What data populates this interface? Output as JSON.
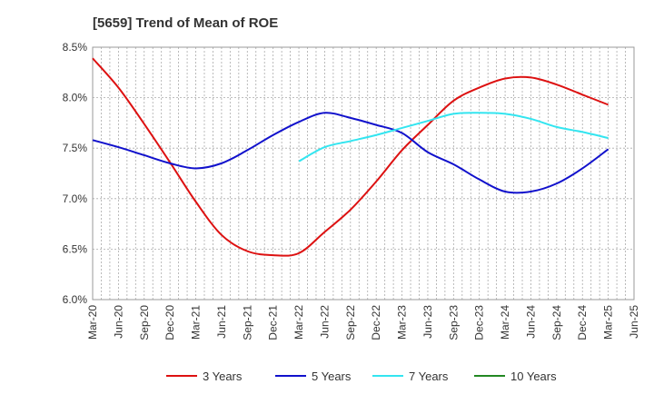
{
  "chart_data": {
    "type": "line",
    "title": "[5659]  Trend of Mean of ROE",
    "xlabel": "",
    "ylabel": "",
    "x": [
      "Mar-20",
      "Jun-20",
      "Sep-20",
      "Dec-20",
      "Mar-21",
      "Jun-21",
      "Sep-21",
      "Dec-21",
      "Mar-22",
      "Jun-22",
      "Sep-22",
      "Dec-22",
      "Mar-23",
      "Jun-23",
      "Sep-23",
      "Dec-23",
      "Mar-24",
      "Jun-24",
      "Sep-24",
      "Dec-24",
      "Mar-25",
      "Jun-25"
    ],
    "ylim": [
      6.0,
      8.5
    ],
    "yticks": [
      6.0,
      6.5,
      7.0,
      7.5,
      8.0,
      8.5
    ],
    "ytick_labels": [
      "6.0%",
      "6.5%",
      "7.0%",
      "7.5%",
      "8.0%",
      "8.5%"
    ],
    "grid": true,
    "legend_position": "bottom",
    "series": [
      {
        "name": "3 Years",
        "color": "#dd1111",
        "values": [
          8.39,
          8.1,
          7.74,
          7.36,
          6.97,
          6.64,
          6.48,
          6.44,
          6.46,
          6.67,
          6.89,
          7.17,
          7.48,
          7.73,
          7.97,
          8.1,
          8.19,
          8.2,
          8.13,
          8.03,
          7.93,
          null
        ]
      },
      {
        "name": "5 Years",
        "color": "#1111cc",
        "values": [
          7.58,
          7.51,
          7.43,
          7.35,
          7.3,
          7.35,
          7.48,
          7.63,
          7.76,
          7.85,
          7.8,
          7.73,
          7.65,
          7.46,
          7.34,
          7.19,
          7.07,
          7.07,
          7.15,
          7.3,
          7.49,
          null
        ]
      },
      {
        "name": "7 Years",
        "color": "#33e5f0",
        "values": [
          null,
          null,
          null,
          null,
          null,
          null,
          null,
          null,
          7.37,
          7.51,
          7.57,
          7.63,
          7.7,
          7.77,
          7.84,
          7.85,
          7.84,
          7.79,
          7.71,
          7.66,
          7.6,
          null
        ]
      },
      {
        "name": "10 Years",
        "color": "#228822",
        "values": [
          null,
          null,
          null,
          null,
          null,
          null,
          null,
          null,
          null,
          null,
          null,
          null,
          null,
          null,
          null,
          null,
          null,
          null,
          null,
          null,
          null,
          null
        ]
      }
    ]
  }
}
